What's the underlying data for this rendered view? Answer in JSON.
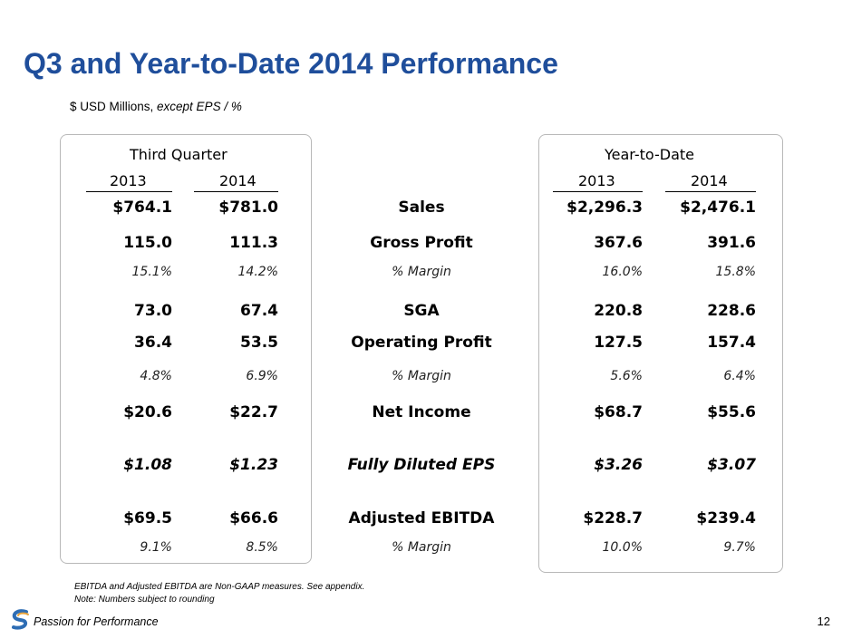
{
  "title": "Q3 and Year-to-Date 2014 Performance",
  "subtitle_main": "$ USD Millions, ",
  "subtitle_italic": "except EPS / %",
  "left_header": "Third Quarter",
  "right_header": "Year-to-Date",
  "years": [
    "2013",
    "2014",
    "2013",
    "2014"
  ],
  "rows": [
    {
      "label": "Sales",
      "q3_2013": "$764.1",
      "q3_2014": "$781.0",
      "ytd_2013": "$2,296.3",
      "ytd_2014": "$2,476.1"
    },
    {
      "label": "Gross Profit",
      "q3_2013": "115.0",
      "q3_2014": "111.3",
      "ytd_2013": "367.6",
      "ytd_2014": "391.6"
    },
    {
      "label": "% Margin",
      "q3_2013": "15.1%",
      "q3_2014": "14.2%",
      "ytd_2013": "16.0%",
      "ytd_2014": "15.8%"
    },
    {
      "label": "SGA",
      "q3_2013": "73.0",
      "q3_2014": "67.4",
      "ytd_2013": "220.8",
      "ytd_2014": "228.6"
    },
    {
      "label": "Operating Profit",
      "q3_2013": "36.4",
      "q3_2014": "53.5",
      "ytd_2013": "127.5",
      "ytd_2014": "157.4"
    },
    {
      "label": "% Margin",
      "q3_2013": "4.8%",
      "q3_2014": "6.9%",
      "ytd_2013": "5.6%",
      "ytd_2014": "6.4%"
    },
    {
      "label": "Net Income",
      "q3_2013": "$20.6",
      "q3_2014": "$22.7",
      "ytd_2013": "$68.7",
      "ytd_2014": "$55.6"
    },
    {
      "label": "Fully Diluted EPS",
      "q3_2013": "$1.08",
      "q3_2014": "$1.23",
      "ytd_2013": "$3.26",
      "ytd_2014": "$3.07"
    },
    {
      "label": "Adjusted EBITDA",
      "q3_2013": "$69.5",
      "q3_2014": "$66.6",
      "ytd_2013": "$228.7",
      "ytd_2014": "$239.4"
    },
    {
      "label": "% Margin",
      "q3_2013": "9.1%",
      "q3_2014": "8.5%",
      "ytd_2013": "10.0%",
      "ytd_2014": "9.7%"
    }
  ],
  "note1": "EBITDA and Adjusted EBITDA are Non-GAAP measures. See appendix.",
  "note2": "Note: Numbers subject to rounding",
  "footer_tag": "Passion for Performance",
  "page_number": "12",
  "colors": {
    "title": "#1f4e9b",
    "logo_blue": "#2e6db4",
    "logo_gold": "#e8a33a"
  }
}
